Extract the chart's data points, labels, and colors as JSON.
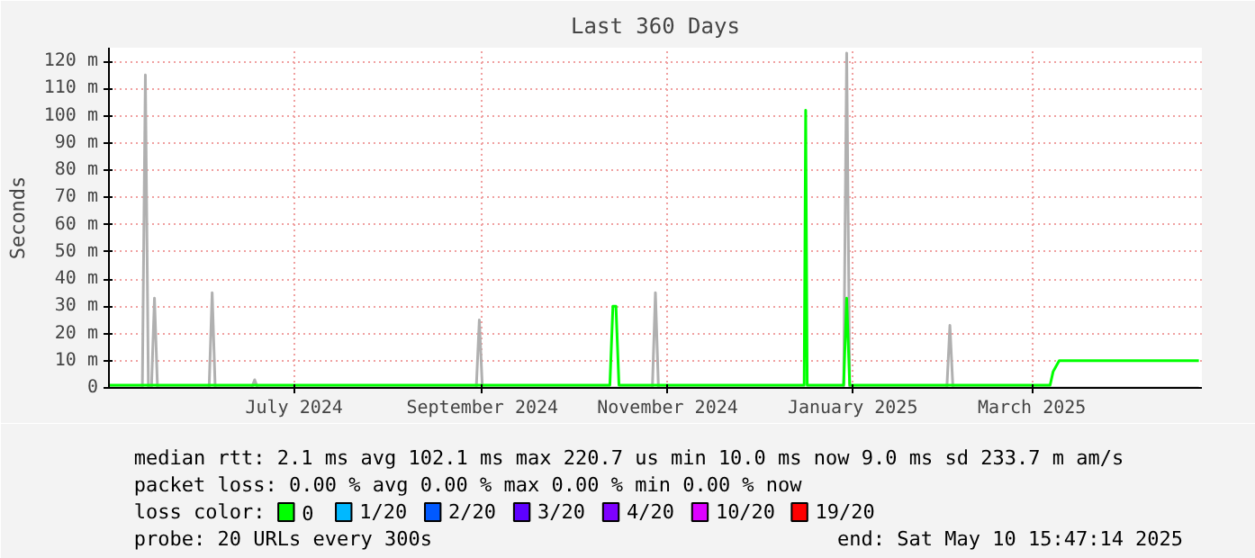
{
  "chart_data": {
    "type": "line",
    "title": "Last 360 Days",
    "ylabel": "Seconds",
    "xlim": [
      "2024-05-15",
      "2025-05-10"
    ],
    "xticks": [
      {
        "value": "2024-07-15",
        "label": "July 2024"
      },
      {
        "value": "2024-09-15",
        "label": "September 2024"
      },
      {
        "value": "2024-11-15",
        "label": "November 2024"
      },
      {
        "value": "2025-01-15",
        "label": "January 2025"
      },
      {
        "value": "2025-03-15",
        "label": "March 2025"
      }
    ],
    "ylim": [
      0,
      125
    ],
    "yticks": [
      0,
      {
        "value": 10,
        "label": "10 m"
      },
      {
        "value": 20,
        "label": "20 m"
      },
      {
        "value": 30,
        "label": "30 m"
      },
      {
        "value": 40,
        "label": "40 m"
      },
      {
        "value": 50,
        "label": "50 m"
      },
      {
        "value": 60,
        "label": "60 m"
      },
      {
        "value": 70,
        "label": "70 m"
      },
      {
        "value": 80,
        "label": "80 m"
      },
      {
        "value": 90,
        "label": "90 m"
      },
      {
        "value": 100,
        "label": "100 m"
      },
      {
        "value": 110,
        "label": "110 m"
      },
      {
        "value": 120,
        "label": "120 m"
      }
    ],
    "grid": true,
    "legend": "bottom",
    "legend_title": "loss color:",
    "series": [
      {
        "color": "#b0b0b0",
        "x": [
          "2024-05-15",
          "2024-05-26",
          "2024-05-27",
          "2024-05-28",
          "2024-05-29",
          "2024-05-30",
          "2024-05-31",
          "2024-06-17",
          "2024-06-18",
          "2024-06-19",
          "2024-07-01",
          "2024-07-02",
          "2024-07-03",
          "2024-09-13",
          "2024-09-14",
          "2024-09-15",
          "2024-11-10",
          "2024-11-11",
          "2024-11-12",
          "2025-01-12",
          "2025-01-13",
          "2025-01-14",
          "2025-02-15",
          "2025-02-16",
          "2025-02-17",
          "2025-05-09"
        ],
        "values": [
          0,
          0,
          115,
          0,
          0,
          33,
          0,
          0,
          35,
          0,
          0,
          3,
          0,
          0,
          25,
          0,
          0,
          35,
          0,
          0,
          123,
          0,
          0,
          23,
          0,
          0
        ]
      },
      {
        "name": "0",
        "color": "#00ff00",
        "x": [
          "2024-05-15",
          "2024-10-27",
          "2024-10-28",
          "2024-10-29",
          "2024-10-30",
          "2024-12-30",
          "2024-12-30T12:00",
          "2024-12-31",
          "2025-01-12",
          "2025-01-13",
          "2025-01-14",
          "2025-03-21",
          "2025-03-22",
          "2025-03-24",
          "2025-05-09"
        ],
        "values": [
          1,
          1,
          30,
          30,
          1,
          1,
          102,
          1,
          1,
          33,
          1,
          1,
          6,
          10,
          10
        ]
      },
      {
        "name": "1/20",
        "color": "#00b8ff"
      },
      {
        "name": "2/20",
        "color": "#0059ff"
      },
      {
        "name": "3/20",
        "color": "#5e00ff"
      },
      {
        "name": "4/20",
        "color": "#7e00ff"
      },
      {
        "name": "10/20",
        "color": "#dd00ff"
      },
      {
        "name": "19/20",
        "color": "#ff0000"
      }
    ],
    "annotations": [
      "median rtt:  2.1 ms avg  102.1 ms max  220.7 us min  10.0 ms now  9.0 ms sd  233.7 m am/s",
      "packet loss: 0.00 % avg  0.00 % max  0.00 % min  0.00 % now",
      "probe:       20 URLs every 300s",
      "end: Sat May 10 15:47:14 2025"
    ]
  }
}
